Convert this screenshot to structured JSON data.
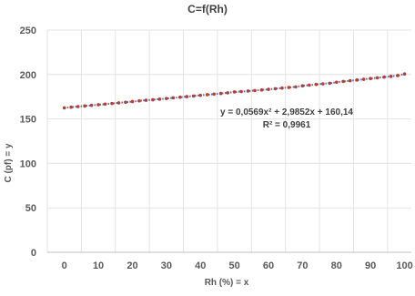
{
  "chart_data": {
    "type": "scatter",
    "title": "C=f(Rh)",
    "xlabel": "Rh (%) = x",
    "ylabel": "C (pf) = y",
    "xlim": [
      -5,
      102
    ],
    "ylim": [
      0,
      250
    ],
    "x_ticks": [
      0,
      10,
      20,
      30,
      40,
      50,
      60,
      70,
      80,
      90,
      100
    ],
    "y_ticks": [
      0,
      50,
      100,
      150,
      200,
      250
    ],
    "grid": true,
    "legend": "none",
    "point_color": "#c0392b",
    "trendline_color": "#4472c4",
    "trendline_type": "polynomial",
    "trendline_coefficients": [
      0.0569,
      2.9852,
      160.14
    ],
    "annotations": [
      "y = 0,0569x² + 2,9852x + 160,14",
      "R² = 0,9961"
    ],
    "series": [
      {
        "x": [
          0,
          2,
          4,
          6,
          8,
          10,
          12,
          14,
          16,
          18,
          20,
          22,
          24,
          26,
          28,
          30,
          32,
          34,
          36,
          38,
          40,
          42,
          44,
          46,
          48,
          50,
          52,
          54,
          56,
          58,
          60,
          62,
          64,
          66,
          68,
          70,
          72,
          74,
          76,
          78,
          80,
          82,
          84,
          86,
          88,
          90,
          92,
          94,
          96,
          98,
          100
        ],
        "y": [
          162.5,
          163.2,
          163.9,
          164.6,
          165.3,
          166.0,
          166.7,
          167.4,
          168.1,
          168.8,
          169.6,
          170.3,
          171.0,
          171.6,
          172.3,
          173.0,
          173.7,
          174.4,
          175.1,
          175.8,
          176.6,
          177.3,
          178.0,
          178.7,
          179.4,
          180.4,
          180.8,
          181.4,
          182.0,
          182.6,
          183.3,
          184.0,
          184.7,
          185.4,
          186.1,
          187.3,
          188.0,
          188.8,
          189.5,
          190.2,
          191.3,
          192.2,
          193.0,
          193.8,
          194.6,
          195.5,
          196.3,
          197.1,
          197.9,
          198.8,
          200.6
        ]
      }
    ]
  }
}
